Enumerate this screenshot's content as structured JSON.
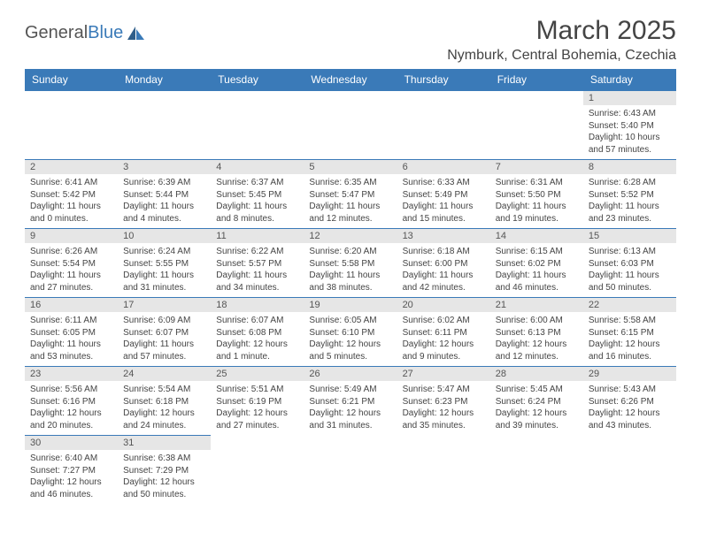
{
  "logo": {
    "text1": "General",
    "text2": "Blue"
  },
  "title": "March 2025",
  "location": "Nymburk, Central Bohemia, Czechia",
  "colors": {
    "header_bg": "#3a7ab8",
    "header_fg": "#ffffff",
    "daynum_bg": "#e6e6e6",
    "border": "#3a7ab8",
    "text": "#444444"
  },
  "weekdays": [
    "Sunday",
    "Monday",
    "Tuesday",
    "Wednesday",
    "Thursday",
    "Friday",
    "Saturday"
  ],
  "weeks": [
    [
      null,
      null,
      null,
      null,
      null,
      null,
      {
        "n": "1",
        "sunrise": "Sunrise: 6:43 AM",
        "sunset": "Sunset: 5:40 PM",
        "daylight": "Daylight: 10 hours and 57 minutes."
      }
    ],
    [
      {
        "n": "2",
        "sunrise": "Sunrise: 6:41 AM",
        "sunset": "Sunset: 5:42 PM",
        "daylight": "Daylight: 11 hours and 0 minutes."
      },
      {
        "n": "3",
        "sunrise": "Sunrise: 6:39 AM",
        "sunset": "Sunset: 5:44 PM",
        "daylight": "Daylight: 11 hours and 4 minutes."
      },
      {
        "n": "4",
        "sunrise": "Sunrise: 6:37 AM",
        "sunset": "Sunset: 5:45 PM",
        "daylight": "Daylight: 11 hours and 8 minutes."
      },
      {
        "n": "5",
        "sunrise": "Sunrise: 6:35 AM",
        "sunset": "Sunset: 5:47 PM",
        "daylight": "Daylight: 11 hours and 12 minutes."
      },
      {
        "n": "6",
        "sunrise": "Sunrise: 6:33 AM",
        "sunset": "Sunset: 5:49 PM",
        "daylight": "Daylight: 11 hours and 15 minutes."
      },
      {
        "n": "7",
        "sunrise": "Sunrise: 6:31 AM",
        "sunset": "Sunset: 5:50 PM",
        "daylight": "Daylight: 11 hours and 19 minutes."
      },
      {
        "n": "8",
        "sunrise": "Sunrise: 6:28 AM",
        "sunset": "Sunset: 5:52 PM",
        "daylight": "Daylight: 11 hours and 23 minutes."
      }
    ],
    [
      {
        "n": "9",
        "sunrise": "Sunrise: 6:26 AM",
        "sunset": "Sunset: 5:54 PM",
        "daylight": "Daylight: 11 hours and 27 minutes."
      },
      {
        "n": "10",
        "sunrise": "Sunrise: 6:24 AM",
        "sunset": "Sunset: 5:55 PM",
        "daylight": "Daylight: 11 hours and 31 minutes."
      },
      {
        "n": "11",
        "sunrise": "Sunrise: 6:22 AM",
        "sunset": "Sunset: 5:57 PM",
        "daylight": "Daylight: 11 hours and 34 minutes."
      },
      {
        "n": "12",
        "sunrise": "Sunrise: 6:20 AM",
        "sunset": "Sunset: 5:58 PM",
        "daylight": "Daylight: 11 hours and 38 minutes."
      },
      {
        "n": "13",
        "sunrise": "Sunrise: 6:18 AM",
        "sunset": "Sunset: 6:00 PM",
        "daylight": "Daylight: 11 hours and 42 minutes."
      },
      {
        "n": "14",
        "sunrise": "Sunrise: 6:15 AM",
        "sunset": "Sunset: 6:02 PM",
        "daylight": "Daylight: 11 hours and 46 minutes."
      },
      {
        "n": "15",
        "sunrise": "Sunrise: 6:13 AM",
        "sunset": "Sunset: 6:03 PM",
        "daylight": "Daylight: 11 hours and 50 minutes."
      }
    ],
    [
      {
        "n": "16",
        "sunrise": "Sunrise: 6:11 AM",
        "sunset": "Sunset: 6:05 PM",
        "daylight": "Daylight: 11 hours and 53 minutes."
      },
      {
        "n": "17",
        "sunrise": "Sunrise: 6:09 AM",
        "sunset": "Sunset: 6:07 PM",
        "daylight": "Daylight: 11 hours and 57 minutes."
      },
      {
        "n": "18",
        "sunrise": "Sunrise: 6:07 AM",
        "sunset": "Sunset: 6:08 PM",
        "daylight": "Daylight: 12 hours and 1 minute."
      },
      {
        "n": "19",
        "sunrise": "Sunrise: 6:05 AM",
        "sunset": "Sunset: 6:10 PM",
        "daylight": "Daylight: 12 hours and 5 minutes."
      },
      {
        "n": "20",
        "sunrise": "Sunrise: 6:02 AM",
        "sunset": "Sunset: 6:11 PM",
        "daylight": "Daylight: 12 hours and 9 minutes."
      },
      {
        "n": "21",
        "sunrise": "Sunrise: 6:00 AM",
        "sunset": "Sunset: 6:13 PM",
        "daylight": "Daylight: 12 hours and 12 minutes."
      },
      {
        "n": "22",
        "sunrise": "Sunrise: 5:58 AM",
        "sunset": "Sunset: 6:15 PM",
        "daylight": "Daylight: 12 hours and 16 minutes."
      }
    ],
    [
      {
        "n": "23",
        "sunrise": "Sunrise: 5:56 AM",
        "sunset": "Sunset: 6:16 PM",
        "daylight": "Daylight: 12 hours and 20 minutes."
      },
      {
        "n": "24",
        "sunrise": "Sunrise: 5:54 AM",
        "sunset": "Sunset: 6:18 PM",
        "daylight": "Daylight: 12 hours and 24 minutes."
      },
      {
        "n": "25",
        "sunrise": "Sunrise: 5:51 AM",
        "sunset": "Sunset: 6:19 PM",
        "daylight": "Daylight: 12 hours and 27 minutes."
      },
      {
        "n": "26",
        "sunrise": "Sunrise: 5:49 AM",
        "sunset": "Sunset: 6:21 PM",
        "daylight": "Daylight: 12 hours and 31 minutes."
      },
      {
        "n": "27",
        "sunrise": "Sunrise: 5:47 AM",
        "sunset": "Sunset: 6:23 PM",
        "daylight": "Daylight: 12 hours and 35 minutes."
      },
      {
        "n": "28",
        "sunrise": "Sunrise: 5:45 AM",
        "sunset": "Sunset: 6:24 PM",
        "daylight": "Daylight: 12 hours and 39 minutes."
      },
      {
        "n": "29",
        "sunrise": "Sunrise: 5:43 AM",
        "sunset": "Sunset: 6:26 PM",
        "daylight": "Daylight: 12 hours and 43 minutes."
      }
    ],
    [
      {
        "n": "30",
        "sunrise": "Sunrise: 6:40 AM",
        "sunset": "Sunset: 7:27 PM",
        "daylight": "Daylight: 12 hours and 46 minutes."
      },
      {
        "n": "31",
        "sunrise": "Sunrise: 6:38 AM",
        "sunset": "Sunset: 7:29 PM",
        "daylight": "Daylight: 12 hours and 50 minutes."
      },
      null,
      null,
      null,
      null,
      null
    ]
  ]
}
